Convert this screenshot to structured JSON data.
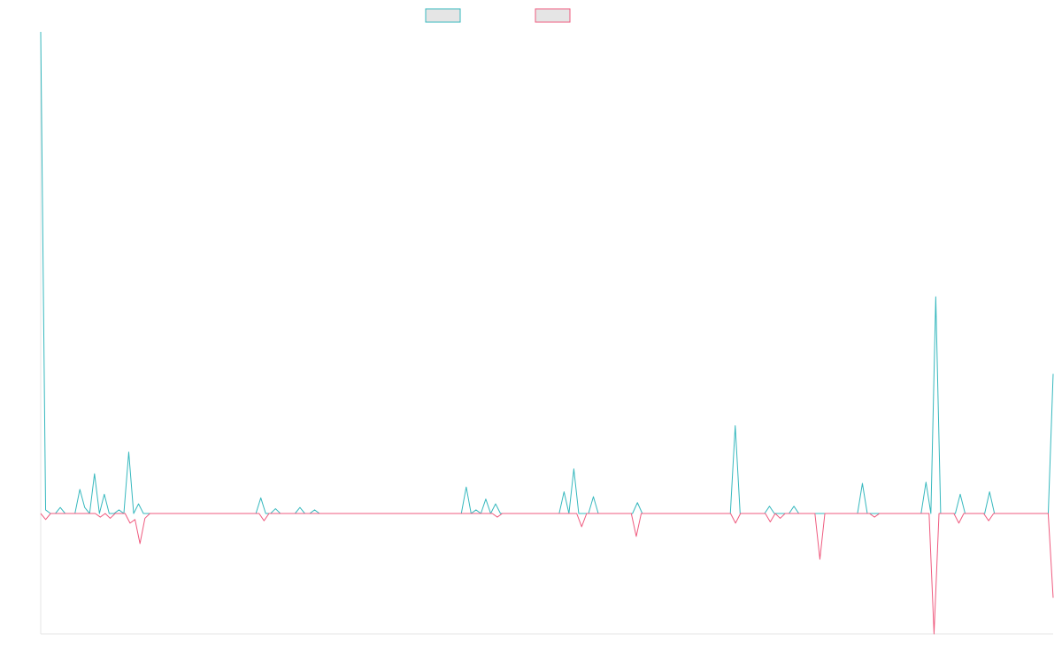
{
  "chart_data": {
    "type": "line",
    "title": "",
    "xlabel": "",
    "ylabel": "",
    "grid": false,
    "legend_position": "top-center",
    "ylim": [
      -100,
      400
    ],
    "x_count": 181,
    "series": [
      {
        "color": "#36b8be",
        "fill": "#e5e5e5",
        "values": [
          400,
          3,
          0,
          0,
          5,
          0,
          0,
          0,
          20,
          5,
          0,
          33,
          0,
          16,
          0,
          0,
          3,
          0,
          51,
          0,
          8,
          0,
          0,
          0,
          0,
          0,
          0,
          0,
          0,
          0,
          0,
          0,
          0,
          0,
          0,
          0,
          0,
          0,
          0,
          0,
          0,
          0,
          0,
          0,
          0,
          13,
          0,
          0,
          4,
          0,
          0,
          0,
          0,
          5,
          0,
          0,
          3,
          0,
          0,
          0,
          0,
          0,
          0,
          0,
          0,
          0,
          0,
          0,
          0,
          0,
          0,
          0,
          0,
          0,
          0,
          0,
          0,
          0,
          0,
          0,
          0,
          0,
          0,
          0,
          0,
          0,
          0,
          22,
          0,
          3,
          0,
          12,
          0,
          8,
          0,
          0,
          0,
          0,
          0,
          0,
          0,
          0,
          0,
          0,
          0,
          0,
          0,
          18,
          0,
          37,
          0,
          0,
          0,
          14,
          0,
          0,
          0,
          0,
          0,
          0,
          0,
          0,
          9,
          0,
          0,
          0,
          0,
          0,
          0,
          0,
          0,
          0,
          0,
          0,
          0,
          0,
          0,
          0,
          0,
          0,
          0,
          0,
          73,
          0,
          0,
          0,
          0,
          0,
          0,
          6,
          0,
          0,
          0,
          0,
          6,
          0,
          0,
          0,
          0,
          0,
          0,
          0,
          0,
          0,
          0,
          0,
          0,
          0,
          25,
          0,
          0,
          0,
          0,
          0,
          0,
          0,
          0,
          0,
          0,
          0,
          0,
          26,
          0,
          180,
          0,
          0,
          0,
          0,
          16,
          0,
          0,
          0,
          0,
          0,
          18,
          0,
          0,
          0,
          0,
          0,
          0,
          0,
          0,
          0,
          0,
          0,
          0,
          116
        ]
      },
      {
        "color": "#ef5b7f",
        "fill": "#e5e5e5",
        "values": [
          0,
          -5,
          0,
          0,
          0,
          0,
          0,
          0,
          0,
          0,
          0,
          0,
          -3,
          0,
          -4,
          0,
          0,
          0,
          -8,
          -5,
          -25,
          -4,
          0,
          0,
          0,
          0,
          0,
          0,
          0,
          0,
          0,
          0,
          0,
          0,
          0,
          0,
          0,
          0,
          0,
          0,
          0,
          0,
          0,
          0,
          0,
          -6,
          0,
          0,
          0,
          0,
          0,
          0,
          0,
          0,
          0,
          0,
          0,
          0,
          0,
          0,
          0,
          0,
          0,
          0,
          0,
          0,
          0,
          0,
          0,
          0,
          0,
          0,
          0,
          0,
          0,
          0,
          0,
          0,
          0,
          0,
          0,
          0,
          0,
          0,
          0,
          0,
          0,
          0,
          0,
          0,
          0,
          0,
          -3,
          0,
          0,
          0,
          0,
          0,
          0,
          0,
          0,
          0,
          0,
          0,
          0,
          0,
          0,
          0,
          0,
          -11,
          0,
          0,
          0,
          0,
          0,
          0,
          0,
          0,
          0,
          0,
          -19,
          0,
          0,
          0,
          0,
          0,
          0,
          0,
          0,
          0,
          0,
          0,
          0,
          0,
          0,
          0,
          0,
          0,
          0,
          0,
          -8,
          0,
          0,
          0,
          0,
          0,
          0,
          -7,
          0,
          -4,
          0,
          0,
          0,
          0,
          0,
          0,
          0,
          -38,
          0,
          0,
          0,
          0,
          0,
          0,
          0,
          0,
          0,
          0,
          -3,
          0,
          0,
          0,
          0,
          0,
          0,
          0,
          0,
          0,
          0,
          0,
          -100,
          0,
          0,
          0,
          0,
          -8,
          0,
          0,
          0,
          0,
          0,
          -6,
          0,
          0,
          0,
          0,
          0,
          0,
          0,
          0,
          0,
          0,
          0,
          0,
          -70
        ]
      }
    ]
  }
}
